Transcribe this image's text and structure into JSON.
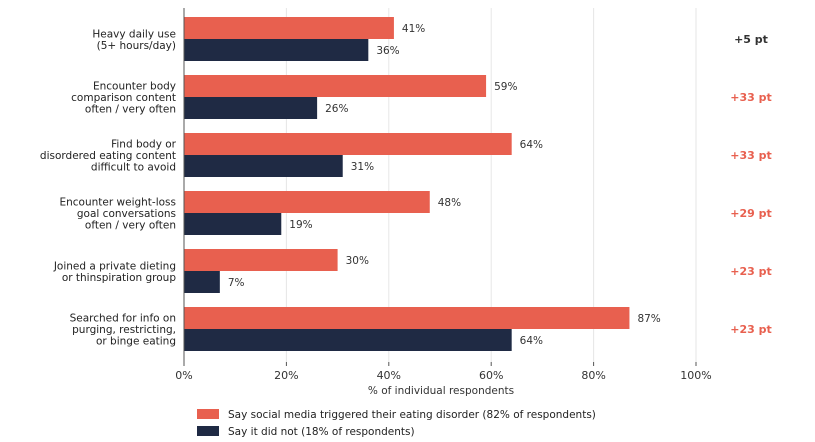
{
  "chart_data": {
    "type": "bar",
    "orientation": "horizontal",
    "categories": [
      [
        "Heavy daily use",
        "(5+ hours/day)"
      ],
      [
        "Encounter body",
        "comparison content",
        "often / very often"
      ],
      [
        "Find body or",
        "disordered eating content",
        "difficult to avoid"
      ],
      [
        "Encounter weight-loss",
        "goal conversations",
        "often / very often"
      ],
      [
        "Joined a private dieting",
        "or thinspiration group"
      ],
      [
        "Searched for info on",
        "purging, restricting,",
        "or binge eating"
      ]
    ],
    "series": [
      {
        "name": "Say social media triggered their eating disorder (82% of respondents)",
        "color": "#e8604f",
        "values": [
          41,
          59,
          64,
          48,
          30,
          87
        ],
        "labels": [
          "41%",
          "59%",
          "64%",
          "48%",
          "30%",
          "87%"
        ]
      },
      {
        "name": "Say it did not (18% of respondents)",
        "color": "#1f2a44",
        "values": [
          36,
          26,
          31,
          19,
          7,
          64
        ],
        "labels": [
          "36%",
          "26%",
          "31%",
          "19%",
          "7%",
          "64%"
        ]
      }
    ],
    "differences": [
      {
        "label": "+5 pt",
        "color": "#333333"
      },
      {
        "label": "+33 pt",
        "color": "#e8604f"
      },
      {
        "label": "+33 pt",
        "color": "#e8604f"
      },
      {
        "label": "+29 pt",
        "color": "#e8604f"
      },
      {
        "label": "+23 pt",
        "color": "#e8604f"
      },
      {
        "label": "+23 pt",
        "color": "#e8604f"
      }
    ],
    "xlabel": "% of individual respondents",
    "xlim": [
      0,
      100
    ],
    "xticks": [
      0,
      20,
      40,
      60,
      80,
      100
    ],
    "xtick_labels": [
      "0%",
      "20%",
      "40%",
      "60%",
      "80%",
      "100%"
    ],
    "grid": true,
    "legend_position": "bottom"
  }
}
